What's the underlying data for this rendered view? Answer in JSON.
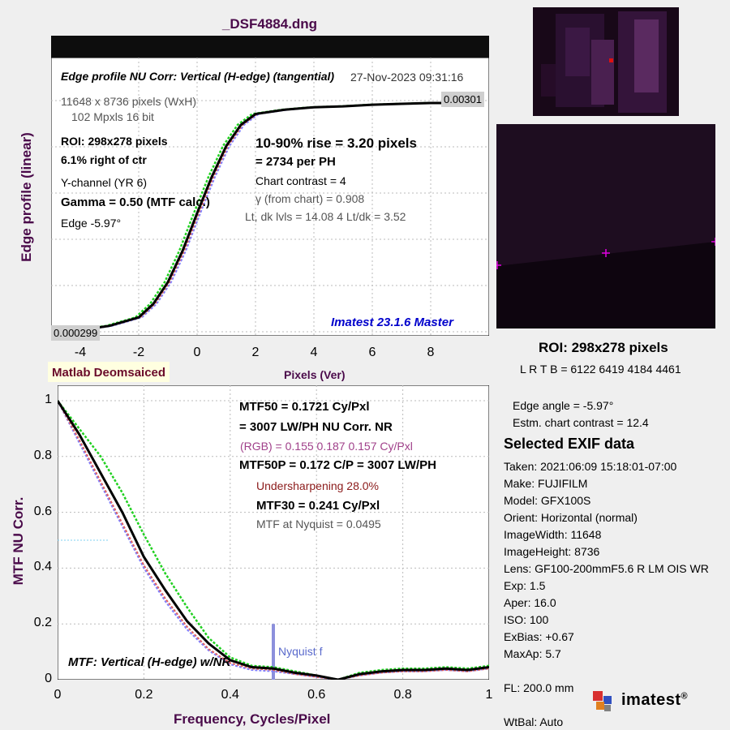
{
  "title": "_DSF4884.dng",
  "edge_panel": {
    "header": "Edge profile  NU Corr: Vertical (H-edge) (tangential)",
    "datetime": "27-Nov-2023 09:31:16",
    "top_value": "0.00301",
    "bottom_value": "0.000299",
    "ylabel": "Edge profile (linear)",
    "xlabel": "Pixels (Ver)",
    "xticks": [
      "-4",
      "-2",
      "0",
      "2",
      "4",
      "6",
      "8"
    ],
    "info": {
      "size": "11648 x 8736 pixels (WxH)",
      "mpx": "102 Mpxls   16 bit",
      "roi": "ROI:  298x278 pixels",
      "offset": "6.1% right of ctr",
      "channel": "Y-channel  (YR 6)",
      "gamma": "Gamma = 0.50 (MTF calc.)",
      "edge": "Edge  -5.97°",
      "rise": "10-90% rise = 3.20 pixels",
      "per_ph": "=   2734 per PH",
      "contrast": "Chart contrast = 4",
      "gamma_chart": "γ (from chart) = 0.908",
      "levels": "Lt, dk lvls = 14.08  4  Lt/dk = 3.52",
      "version": "Imatest 23.1.6 Master"
    }
  },
  "mtf_panel": {
    "badge": "Matlab Deomsaiced",
    "ylabel": "MTF  NU Corr.",
    "xlabel": "Frequency, Cycles/Pixel",
    "yticks": [
      "0",
      "0.2",
      "0.4",
      "0.6",
      "0.8",
      "1"
    ],
    "xticks": [
      "0",
      "0.2",
      "0.4",
      "0.6",
      "0.8",
      "1"
    ],
    "mtf50": "MTF50 = 0.1721 Cy/Pxl",
    "mtf50_lw": "= 3007 LW/PH  NU Corr.  NR",
    "rgb": "(RGB) = 0.155  0.187  0.157 Cy/Pxl",
    "mtf50p": "MTF50P = 0.172 C/P = 3007 LW/PH",
    "undersharp": "Undersharpening 28.0%",
    "mtf30": "MTF30 = 0.241 Cy/Pxl",
    "nyq": "MTF at Nyquist = 0.0495",
    "nyq_label": "Nyquist f",
    "caption": "MTF: Vertical (H-edge) w/NR"
  },
  "right": {
    "roi": "ROI:  298x278 pixels",
    "lrtb": "L R  T B = 6122 6419  4184 4461",
    "edge_angle": "Edge angle = -5.97°",
    "est_contrast": "Estm. chart contrast = 12.4",
    "exif_title": "Selected EXIF data",
    "exif": [
      "Taken:  2021:06:09 15:18:01-07:00",
      "Make:   FUJIFILM",
      "Model:   GFX100S",
      "Orient: Horizontal (normal)",
      "ImageWidth:   11648",
      "ImageHeight:   8736",
      "Lens:    GF100-200mmF5.6 R LM OIS WR",
      "Exp:     1.5",
      "Aper:    16.0",
      "ISO:     100",
      "ExBias:   +0.67",
      "MaxAp:   5.7",
      "",
      "FL:       200.0 mm",
      "",
      "WtBal:   Auto"
    ],
    "logo": "imatest"
  },
  "chart_data": [
    {
      "type": "line",
      "title": "Edge profile  NU Corr: Vertical (H-edge) (tangential)",
      "xlabel": "Pixels (Ver)",
      "ylabel": "Edge profile (linear)",
      "xlim": [
        -5.0,
        10.0
      ],
      "ylim": [
        0.000299,
        0.00301
      ],
      "series": [
        {
          "name": "Y",
          "x": [
            -5,
            -4,
            -3,
            -2,
            -1.5,
            -1,
            -0.5,
            0,
            0.5,
            1,
            1.5,
            2,
            3,
            4,
            5,
            6,
            7,
            8,
            8.5
          ],
          "y": [
            0.000299,
            0.00031,
            0.00036,
            0.00046,
            0.00062,
            0.00088,
            0.00125,
            0.0017,
            0.00213,
            0.0025,
            0.00275,
            0.00288,
            0.00293,
            0.00296,
            0.00297,
            0.00299,
            0.003,
            0.00301,
            0.00301
          ]
        }
      ]
    },
    {
      "type": "line",
      "title": "MTF: Vertical (H-edge) w/NR",
      "xlabel": "Frequency, Cycles/Pixel",
      "ylabel": "MTF  NU Corr.",
      "xlim": [
        0,
        1
      ],
      "ylim": [
        0,
        1.05
      ],
      "series": [
        {
          "name": "Y",
          "x": [
            0,
            0.05,
            0.1,
            0.15,
            0.2,
            0.25,
            0.3,
            0.35,
            0.4,
            0.45,
            0.5,
            0.55,
            0.6,
            0.65,
            0.7,
            0.75,
            0.8,
            0.85,
            0.9,
            0.95,
            1.0
          ],
          "y": [
            1.0,
            0.88,
            0.74,
            0.6,
            0.44,
            0.32,
            0.21,
            0.13,
            0.07,
            0.045,
            0.04,
            0.025,
            0.015,
            0.0,
            0.02,
            0.03,
            0.035,
            0.035,
            0.04,
            0.035,
            0.045
          ]
        },
        {
          "name": "G",
          "x": [
            0,
            0.05,
            0.1,
            0.15,
            0.2,
            0.25,
            0.3,
            0.35,
            0.4,
            0.45,
            0.5,
            0.55,
            0.6,
            0.65,
            0.7,
            0.75,
            0.8,
            0.85,
            0.9,
            0.95,
            1.0
          ],
          "y": [
            1.0,
            0.9,
            0.8,
            0.67,
            0.52,
            0.38,
            0.26,
            0.15,
            0.08,
            0.05,
            0.045,
            0.03,
            0.015,
            0.0,
            0.025,
            0.035,
            0.04,
            0.04,
            0.045,
            0.04,
            0.05
          ]
        },
        {
          "name": "R",
          "x": [
            0,
            0.05,
            0.1,
            0.15,
            0.2,
            0.25,
            0.3,
            0.35,
            0.4,
            0.45,
            0.5,
            0.55,
            0.6,
            0.65,
            0.7,
            0.75,
            0.8,
            0.85,
            0.9,
            0.95,
            1.0
          ],
          "y": [
            1.0,
            0.86,
            0.71,
            0.56,
            0.41,
            0.29,
            0.19,
            0.11,
            0.06,
            0.04,
            0.035,
            0.02,
            0.01,
            0.0,
            0.015,
            0.025,
            0.03,
            0.03,
            0.035,
            0.03,
            0.04
          ]
        },
        {
          "name": "B",
          "x": [
            0,
            0.05,
            0.1,
            0.15,
            0.2,
            0.25,
            0.3,
            0.35,
            0.4,
            0.45,
            0.5,
            0.55,
            0.6,
            0.65,
            0.7,
            0.75,
            0.8,
            0.85,
            0.9,
            0.95,
            1.0
          ],
          "y": [
            1.0,
            0.85,
            0.7,
            0.55,
            0.4,
            0.28,
            0.18,
            0.105,
            0.055,
            0.035,
            0.03,
            0.02,
            0.01,
            0.0,
            0.015,
            0.025,
            0.03,
            0.03,
            0.035,
            0.03,
            0.04
          ]
        }
      ]
    }
  ]
}
